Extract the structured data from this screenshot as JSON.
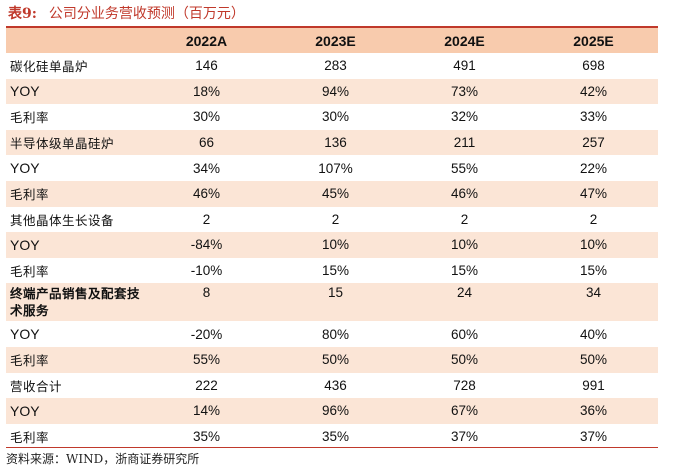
{
  "title": {
    "number": "表9:",
    "text": "公司分业务营收预测（百万元）"
  },
  "table": {
    "headers": [
      "",
      "2022A",
      "2023E",
      "2024E",
      "2025E"
    ],
    "rows": [
      {
        "label": "碳化硅单晶炉",
        "values": [
          "146",
          "283",
          "491",
          "698"
        ]
      },
      {
        "label": "YOY",
        "values": [
          "18%",
          "94%",
          "73%",
          "42%"
        ]
      },
      {
        "label": "毛利率",
        "values": [
          "30%",
          "30%",
          "32%",
          "33%"
        ]
      },
      {
        "label": "半导体级单晶硅炉",
        "values": [
          "66",
          "136",
          "211",
          "257"
        ]
      },
      {
        "label": "YOY",
        "values": [
          "34%",
          "107%",
          "55%",
          "22%"
        ]
      },
      {
        "label": "毛利率",
        "values": [
          "46%",
          "45%",
          "46%",
          "47%"
        ]
      },
      {
        "label": "其他晶体生长设备",
        "values": [
          "2",
          "2",
          "2",
          "2"
        ]
      },
      {
        "label": "YOY",
        "values": [
          "-84%",
          "10%",
          "10%",
          "10%"
        ]
      },
      {
        "label": "毛利率",
        "values": [
          "-10%",
          "15%",
          "15%",
          "15%"
        ]
      },
      {
        "label": "终端产品销售及配套技术服务",
        "values": [
          "8",
          "15",
          "24",
          "34"
        ]
      },
      {
        "label": "YOY",
        "values": [
          "-20%",
          "80%",
          "60%",
          "40%"
        ]
      },
      {
        "label": "毛利率",
        "values": [
          "55%",
          "50%",
          "50%",
          "50%"
        ]
      },
      {
        "label": "营收合计",
        "values": [
          "222",
          "436",
          "728",
          "991"
        ]
      },
      {
        "label": "YOY",
        "values": [
          "14%",
          "96%",
          "67%",
          "36%"
        ]
      },
      {
        "label": "毛利率",
        "values": [
          "35%",
          "35%",
          "37%",
          "37%"
        ]
      }
    ]
  },
  "source": "资料来源：WIND，浙商证券研究所"
}
